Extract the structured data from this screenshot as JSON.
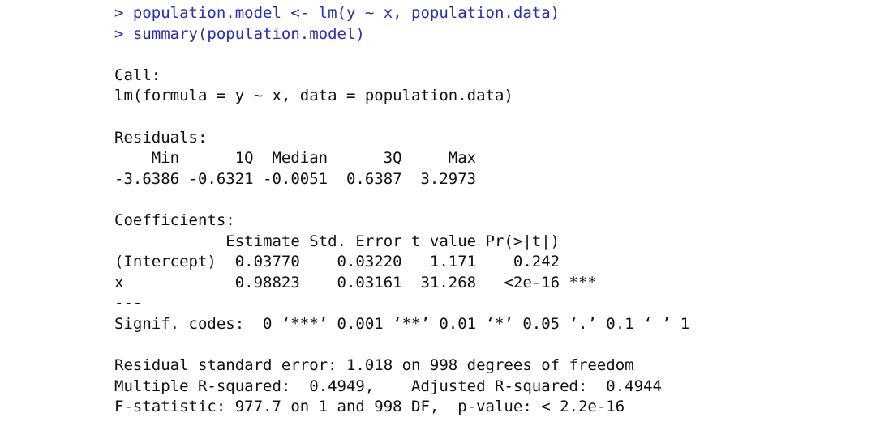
{
  "console": {
    "commands": [
      "> population.model <- lm(y ~ x, population.data)",
      "> summary(population.model)"
    ],
    "call_label": "Call:",
    "call_formula": "lm(formula = y ~ x, data = population.data)",
    "residuals_label": "Residuals:",
    "residuals_header": "    Min      1Q  Median      3Q     Max ",
    "residuals_values": "-3.6386 -0.6321 -0.0051  0.6387  3.2973 ",
    "coefficients_label": "Coefficients:",
    "coefficients_header": "            Estimate Std. Error t value Pr(>|t|)    ",
    "coefficients_rows": [
      "(Intercept)  0.03770    0.03220   1.171    0.242    ",
      "x            0.98823    0.03161  31.268   <2e-16 ***"
    ],
    "separator": "---",
    "signif_codes": "Signif. codes:  0 ‘***’ 0.001 ‘**’ 0.01 ‘*’ 0.05 ‘.’ 0.1 ‘ ’ 1",
    "rse": "Residual standard error: 1.018 on 998 degrees of freedom",
    "r_squared": "Multiple R-squared:  0.4949,\tAdjusted R-squared:  0.4944 ",
    "f_statistic": "F-statistic: 977.7 on 1 and 998 DF,  p-value: < 2.2e-16"
  }
}
